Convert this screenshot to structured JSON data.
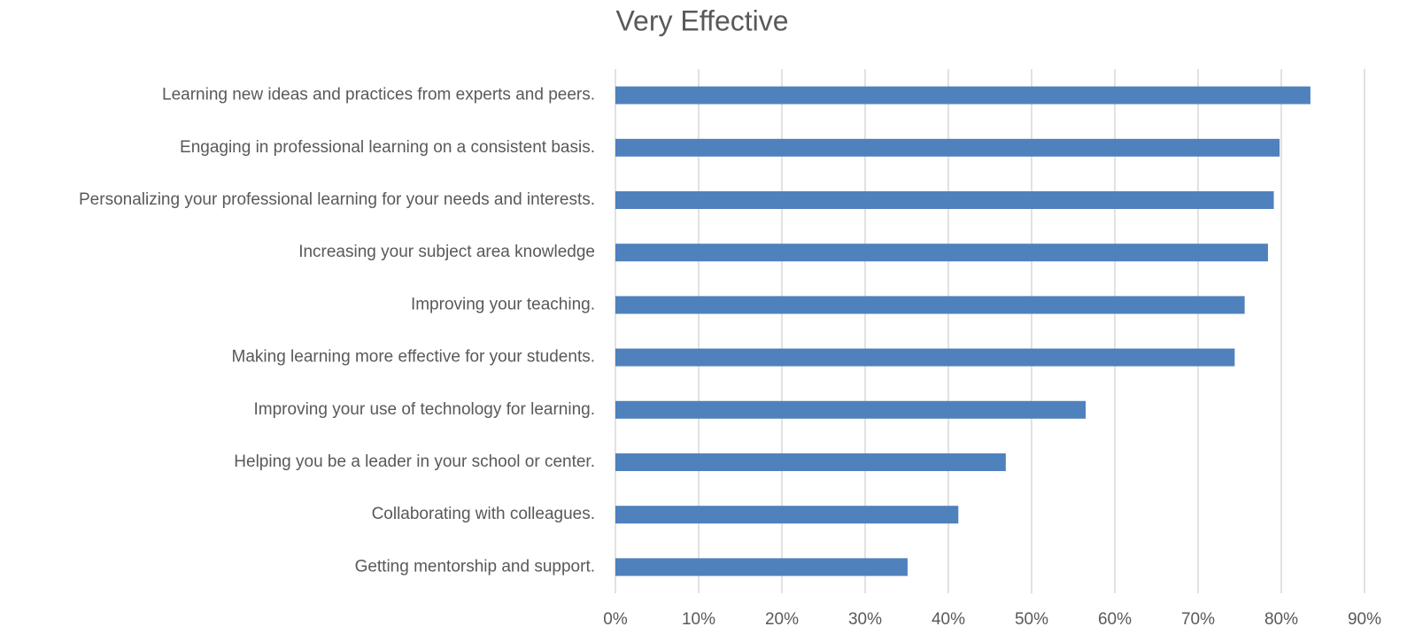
{
  "chart_data": {
    "type": "barh",
    "title": "Very Effective",
    "categories": [
      "Learning new ideas and practices from experts and peers.",
      "Engaging in professional learning on a consistent basis.",
      "Personalizing your professional learning for your needs and interests.",
      "Increasing your subject area knowledge",
      "Improving your teaching.",
      "Making learning more effective for your students.",
      "Improving your use of technology for learning.",
      "Helping you be a leader in your school or center.",
      "Collaborating with colleagues.",
      "Getting mentorship and support."
    ],
    "values": [
      83.5,
      79.8,
      79.1,
      78.4,
      75.6,
      74.4,
      56.5,
      46.9,
      41.2,
      35.1
    ],
    "color": "#4f81bd",
    "xlim": [
      0,
      90
    ],
    "xticks": [
      {
        "value": 0,
        "label": "0%"
      },
      {
        "value": 10,
        "label": "10%"
      },
      {
        "value": 20,
        "label": "20%"
      },
      {
        "value": 30,
        "label": "30%"
      },
      {
        "value": 40,
        "label": "40%"
      },
      {
        "value": 50,
        "label": "50%"
      },
      {
        "value": 60,
        "label": "60%"
      },
      {
        "value": 70,
        "label": "70%"
      },
      {
        "value": 80,
        "label": "80%"
      },
      {
        "value": 90,
        "label": "90%"
      }
    ],
    "grid": true
  }
}
